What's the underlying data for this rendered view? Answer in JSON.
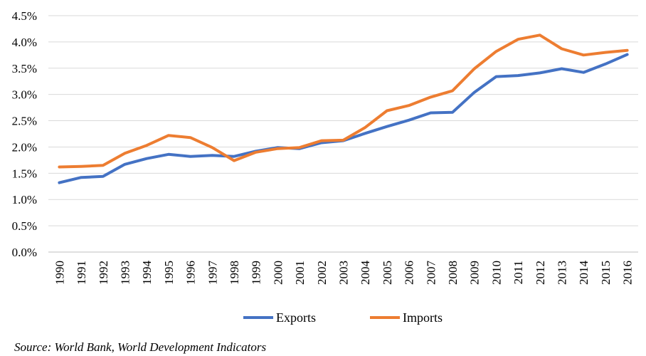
{
  "chart_data": {
    "type": "line",
    "title": "",
    "xlabel": "",
    "ylabel": "",
    "categories": [
      "1990",
      "1991",
      "1992",
      "1993",
      "1994",
      "1995",
      "1996",
      "1997",
      "1998",
      "1999",
      "2000",
      "2001",
      "2002",
      "2003",
      "2004",
      "2005",
      "2006",
      "2007",
      "2008",
      "2009",
      "2010",
      "2011",
      "2012",
      "2013",
      "2014",
      "2015",
      "2016"
    ],
    "y_ticks": [
      "0.0%",
      "0.5%",
      "1.0%",
      "1.5%",
      "2.0%",
      "2.5%",
      "3.0%",
      "3.5%",
      "4.0%",
      "4.5%"
    ],
    "ylim": [
      0,
      4.5
    ],
    "grid": true,
    "legend_position": "bottom",
    "series": [
      {
        "name": "Exports",
        "color": "#4472C4",
        "values": [
          1.32,
          1.42,
          1.44,
          1.67,
          1.78,
          1.86,
          1.82,
          1.84,
          1.82,
          1.92,
          1.99,
          1.97,
          2.08,
          2.12,
          2.26,
          2.39,
          2.51,
          2.65,
          2.66,
          3.04,
          3.34,
          3.36,
          3.41,
          3.49,
          3.42,
          3.58,
          3.76
        ]
      },
      {
        "name": "Imports",
        "color": "#ED7D31",
        "values": [
          1.62,
          1.63,
          1.65,
          1.88,
          2.03,
          2.22,
          2.18,
          1.99,
          1.74,
          1.9,
          1.97,
          1.99,
          2.12,
          2.13,
          2.37,
          2.69,
          2.79,
          2.95,
          3.07,
          3.49,
          3.82,
          4.05,
          4.13,
          3.87,
          3.75,
          3.8,
          3.84
        ]
      }
    ]
  },
  "source_note": "Source:  World Bank, World Development Indicators"
}
